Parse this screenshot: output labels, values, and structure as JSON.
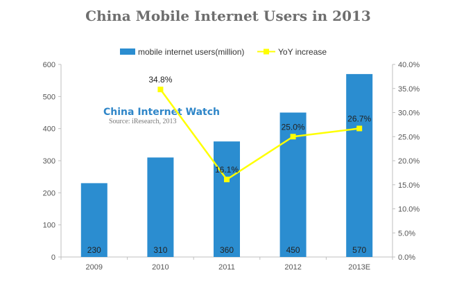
{
  "chart_data": {
    "type": "bar",
    "title": "China  Mobile Internet Users in 2013",
    "categories": [
      "2009",
      "2010",
      "2011",
      "2012",
      "2013E"
    ],
    "series": [
      {
        "name": "mobile internet users(million)",
        "type": "bar",
        "axis": "left",
        "color": "#2b8dd0",
        "values": [
          230,
          310,
          360,
          450,
          570
        ],
        "labels": [
          "230",
          "310",
          "360",
          "450",
          "570"
        ]
      },
      {
        "name": "YoY increase",
        "type": "line",
        "axis": "right",
        "color": "#ffff00",
        "values": [
          null,
          34.8,
          16.1,
          25.0,
          26.7
        ],
        "labels": [
          "",
          "34.8%",
          "16.1%",
          "25.0%",
          "26.7%"
        ]
      }
    ],
    "y_left": {
      "min": 0,
      "max": 600,
      "ticks": [
        "0",
        "100",
        "200",
        "300",
        "400",
        "500",
        "600"
      ]
    },
    "y_right": {
      "min": 0,
      "max": 40,
      "ticks": [
        "0.0%",
        "5.0%",
        "10.0%",
        "15.0%",
        "20.0%",
        "25.0%",
        "30.0%",
        "35.0%",
        "40.0%"
      ]
    },
    "legend_position": "top-center",
    "grid": false,
    "watermark": {
      "title": "China Internet Watch",
      "source": "Source: iResearch, 2013"
    }
  }
}
